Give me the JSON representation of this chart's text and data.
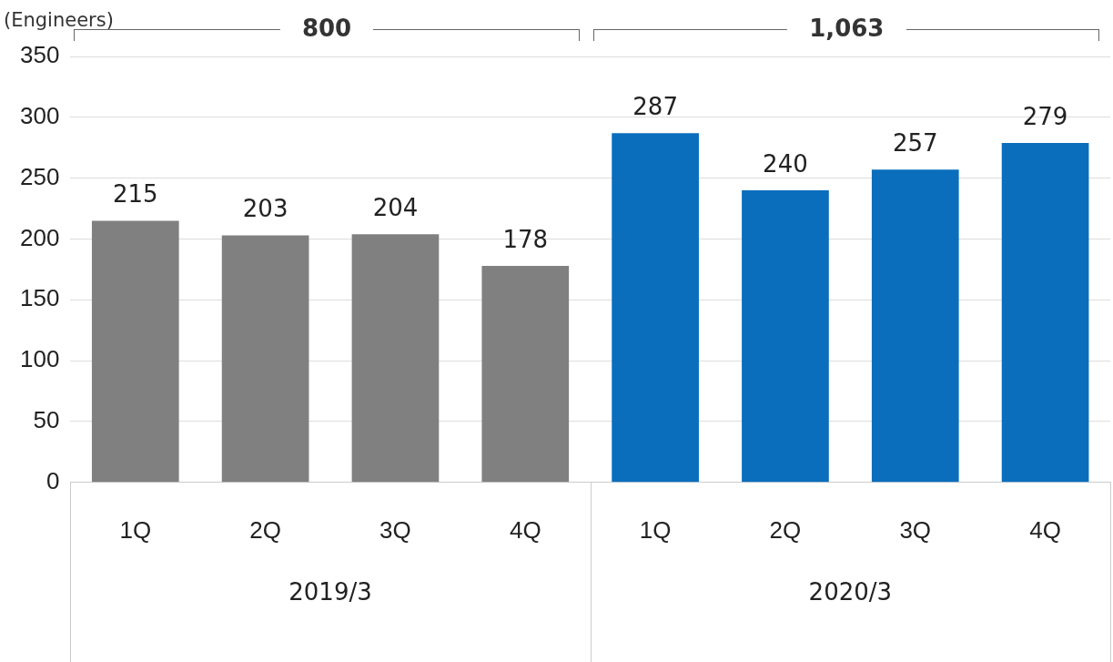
{
  "chart_data": {
    "type": "bar",
    "ylabel": "(Engineers)",
    "categories": [
      "1Q",
      "2Q",
      "3Q",
      "4Q",
      "1Q",
      "2Q",
      "3Q",
      "4Q"
    ],
    "values": [
      215,
      203,
      204,
      178,
      287,
      240,
      257,
      279
    ],
    "colors": [
      "#808080",
      "#808080",
      "#808080",
      "#808080",
      "#0a6ebd",
      "#0a6ebd",
      "#0a6ebd",
      "#0a6ebd"
    ],
    "ylim": [
      0,
      350
    ],
    "yticks": [
      0,
      50,
      100,
      150,
      200,
      250,
      300,
      350
    ],
    "grid": "y",
    "legend": false,
    "data_labels": true,
    "annotations": [
      "800",
      "1,063",
      "2019/3",
      "2020/3"
    ]
  }
}
